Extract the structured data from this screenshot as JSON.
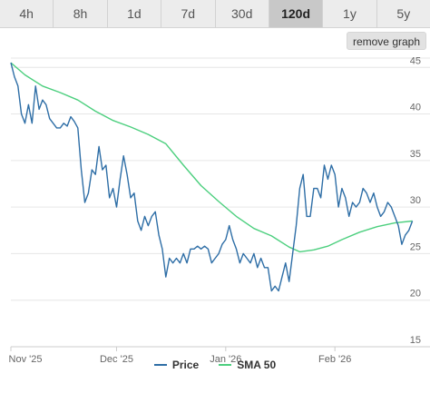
{
  "tabs": [
    {
      "label": "4h"
    },
    {
      "label": "8h"
    },
    {
      "label": "1d"
    },
    {
      "label": "7d"
    },
    {
      "label": "30d"
    },
    {
      "label": "120d",
      "active": true
    },
    {
      "label": "1y"
    },
    {
      "label": "5y"
    }
  ],
  "remove_graph_label": "remove graph",
  "colors": {
    "price": "#2e6ea6",
    "sma": "#4ccf7e",
    "grid": "#e6e6e6",
    "axis": "#cccccc"
  },
  "chart_data": {
    "type": "line",
    "x_ticks": [
      "Nov '25",
      "Dec '25",
      "Jan '26",
      "Feb '26"
    ],
    "x_tick_dates": [
      "2025-11-01",
      "2025-12-01",
      "2026-01-01",
      "2026-02-01"
    ],
    "x_range": [
      "2025-11-01",
      "2026-02-28"
    ],
    "y_ticks": [
      15,
      20,
      25,
      30,
      35,
      40,
      45
    ],
    "ylim": [
      15,
      46
    ],
    "grid": true,
    "legend_position": "bottom",
    "series": [
      {
        "name": "Price",
        "color": "#2e6ea6",
        "points": [
          [
            "2025-11-01",
            45.5
          ],
          [
            "2025-11-02",
            44.0
          ],
          [
            "2025-11-03",
            43.0
          ],
          [
            "2025-11-04",
            40.0
          ],
          [
            "2025-11-05",
            39.0
          ],
          [
            "2025-11-06",
            41.0
          ],
          [
            "2025-11-07",
            39.0
          ],
          [
            "2025-11-08",
            43.0
          ],
          [
            "2025-11-09",
            40.5
          ],
          [
            "2025-11-10",
            41.5
          ],
          [
            "2025-11-11",
            41.0
          ],
          [
            "2025-11-12",
            39.5
          ],
          [
            "2025-11-13",
            39.0
          ],
          [
            "2025-11-14",
            38.5
          ],
          [
            "2025-11-15",
            38.5
          ],
          [
            "2025-11-16",
            39.0
          ],
          [
            "2025-11-17",
            38.7
          ],
          [
            "2025-11-18",
            39.7
          ],
          [
            "2025-11-19",
            39.2
          ],
          [
            "2025-11-20",
            38.5
          ],
          [
            "2025-11-21",
            34.0
          ],
          [
            "2025-11-22",
            30.5
          ],
          [
            "2025-11-23",
            31.5
          ],
          [
            "2025-11-24",
            34.0
          ],
          [
            "2025-11-25",
            33.5
          ],
          [
            "2025-11-26",
            36.5
          ],
          [
            "2025-11-27",
            34.0
          ],
          [
            "2025-11-28",
            34.5
          ],
          [
            "2025-11-29",
            31.0
          ],
          [
            "2025-11-30",
            32.0
          ],
          [
            "2025-12-01",
            30.0
          ],
          [
            "2025-12-02",
            33.0
          ],
          [
            "2025-12-03",
            35.5
          ],
          [
            "2025-12-04",
            33.5
          ],
          [
            "2025-12-05",
            31.0
          ],
          [
            "2025-12-06",
            31.5
          ],
          [
            "2025-12-07",
            28.5
          ],
          [
            "2025-12-08",
            27.5
          ],
          [
            "2025-12-09",
            29.0
          ],
          [
            "2025-12-10",
            28.0
          ],
          [
            "2025-12-11",
            29.0
          ],
          [
            "2025-12-12",
            29.5
          ],
          [
            "2025-12-13",
            27.0
          ],
          [
            "2025-12-14",
            25.5
          ],
          [
            "2025-12-15",
            22.5
          ],
          [
            "2025-12-16",
            24.5
          ],
          [
            "2025-12-17",
            24.0
          ],
          [
            "2025-12-18",
            24.5
          ],
          [
            "2025-12-19",
            24.0
          ],
          [
            "2025-12-20",
            25.0
          ],
          [
            "2025-12-21",
            24.0
          ],
          [
            "2025-12-22",
            25.5
          ],
          [
            "2025-12-23",
            25.5
          ],
          [
            "2025-12-24",
            25.8
          ],
          [
            "2025-12-25",
            25.5
          ],
          [
            "2025-12-26",
            25.8
          ],
          [
            "2025-12-27",
            25.5
          ],
          [
            "2025-12-28",
            24.0
          ],
          [
            "2025-12-29",
            24.5
          ],
          [
            "2025-12-30",
            25.0
          ],
          [
            "2025-12-31",
            26.0
          ],
          [
            "2026-01-01",
            26.5
          ],
          [
            "2026-01-02",
            28.0
          ],
          [
            "2026-01-03",
            26.5
          ],
          [
            "2026-01-04",
            25.5
          ],
          [
            "2026-01-05",
            24.0
          ],
          [
            "2026-01-06",
            25.0
          ],
          [
            "2026-01-07",
            24.5
          ],
          [
            "2026-01-08",
            24.0
          ],
          [
            "2026-01-09",
            25.0
          ],
          [
            "2026-01-10",
            23.5
          ],
          [
            "2026-01-11",
            24.5
          ],
          [
            "2026-01-12",
            23.5
          ],
          [
            "2026-01-13",
            23.5
          ],
          [
            "2026-01-14",
            21.0
          ],
          [
            "2026-01-15",
            21.5
          ],
          [
            "2026-01-16",
            21.0
          ],
          [
            "2026-01-17",
            22.5
          ],
          [
            "2026-01-18",
            24.0
          ],
          [
            "2026-01-19",
            22.0
          ],
          [
            "2026-01-20",
            25.0
          ],
          [
            "2026-01-21",
            28.0
          ],
          [
            "2026-01-22",
            32.0
          ],
          [
            "2026-01-23",
            33.5
          ],
          [
            "2026-01-24",
            29.0
          ],
          [
            "2026-01-25",
            29.0
          ],
          [
            "2026-01-26",
            32.0
          ],
          [
            "2026-01-27",
            32.0
          ],
          [
            "2026-01-28",
            31.0
          ],
          [
            "2026-01-29",
            34.5
          ],
          [
            "2026-01-30",
            33.0
          ],
          [
            "2026-01-31",
            34.5
          ],
          [
            "2026-02-01",
            33.5
          ],
          [
            "2026-02-02",
            30.0
          ],
          [
            "2026-02-03",
            32.0
          ],
          [
            "2026-02-04",
            31.0
          ],
          [
            "2026-02-05",
            29.0
          ],
          [
            "2026-02-06",
            30.5
          ],
          [
            "2026-02-07",
            30.0
          ],
          [
            "2026-02-08",
            30.5
          ],
          [
            "2026-02-09",
            32.0
          ],
          [
            "2026-02-10",
            31.5
          ],
          [
            "2026-02-11",
            30.5
          ],
          [
            "2026-02-12",
            31.5
          ],
          [
            "2026-02-13",
            30.0
          ],
          [
            "2026-02-14",
            29.0
          ],
          [
            "2026-02-15",
            29.5
          ],
          [
            "2026-02-16",
            30.5
          ],
          [
            "2026-02-17",
            30.0
          ],
          [
            "2026-02-18",
            29.0
          ],
          [
            "2026-02-19",
            28.0
          ],
          [
            "2026-02-20",
            26.0
          ],
          [
            "2026-02-21",
            27.0
          ],
          [
            "2026-02-22",
            27.5
          ],
          [
            "2026-02-23",
            28.5
          ]
        ]
      },
      {
        "name": "SMA 50",
        "color": "#4ccf7e",
        "points": [
          [
            "2025-11-01",
            45.5
          ],
          [
            "2025-11-05",
            44.2
          ],
          [
            "2025-11-10",
            43.0
          ],
          [
            "2025-11-15",
            42.3
          ],
          [
            "2025-11-20",
            41.5
          ],
          [
            "2025-11-25",
            40.3
          ],
          [
            "2025-11-30",
            39.3
          ],
          [
            "2025-12-05",
            38.6
          ],
          [
            "2025-12-10",
            37.8
          ],
          [
            "2025-12-15",
            36.8
          ],
          [
            "2025-12-20",
            34.5
          ],
          [
            "2025-12-25",
            32.3
          ],
          [
            "2025-12-30",
            30.6
          ],
          [
            "2026-01-04",
            29.0
          ],
          [
            "2026-01-09",
            27.7
          ],
          [
            "2026-01-14",
            26.9
          ],
          [
            "2026-01-19",
            25.7
          ],
          [
            "2026-01-22",
            25.2
          ],
          [
            "2026-01-26",
            25.4
          ],
          [
            "2026-01-30",
            25.8
          ],
          [
            "2026-02-03",
            26.5
          ],
          [
            "2026-02-08",
            27.3
          ],
          [
            "2026-02-13",
            27.9
          ],
          [
            "2026-02-18",
            28.3
          ],
          [
            "2026-02-23",
            28.5
          ]
        ]
      }
    ]
  }
}
